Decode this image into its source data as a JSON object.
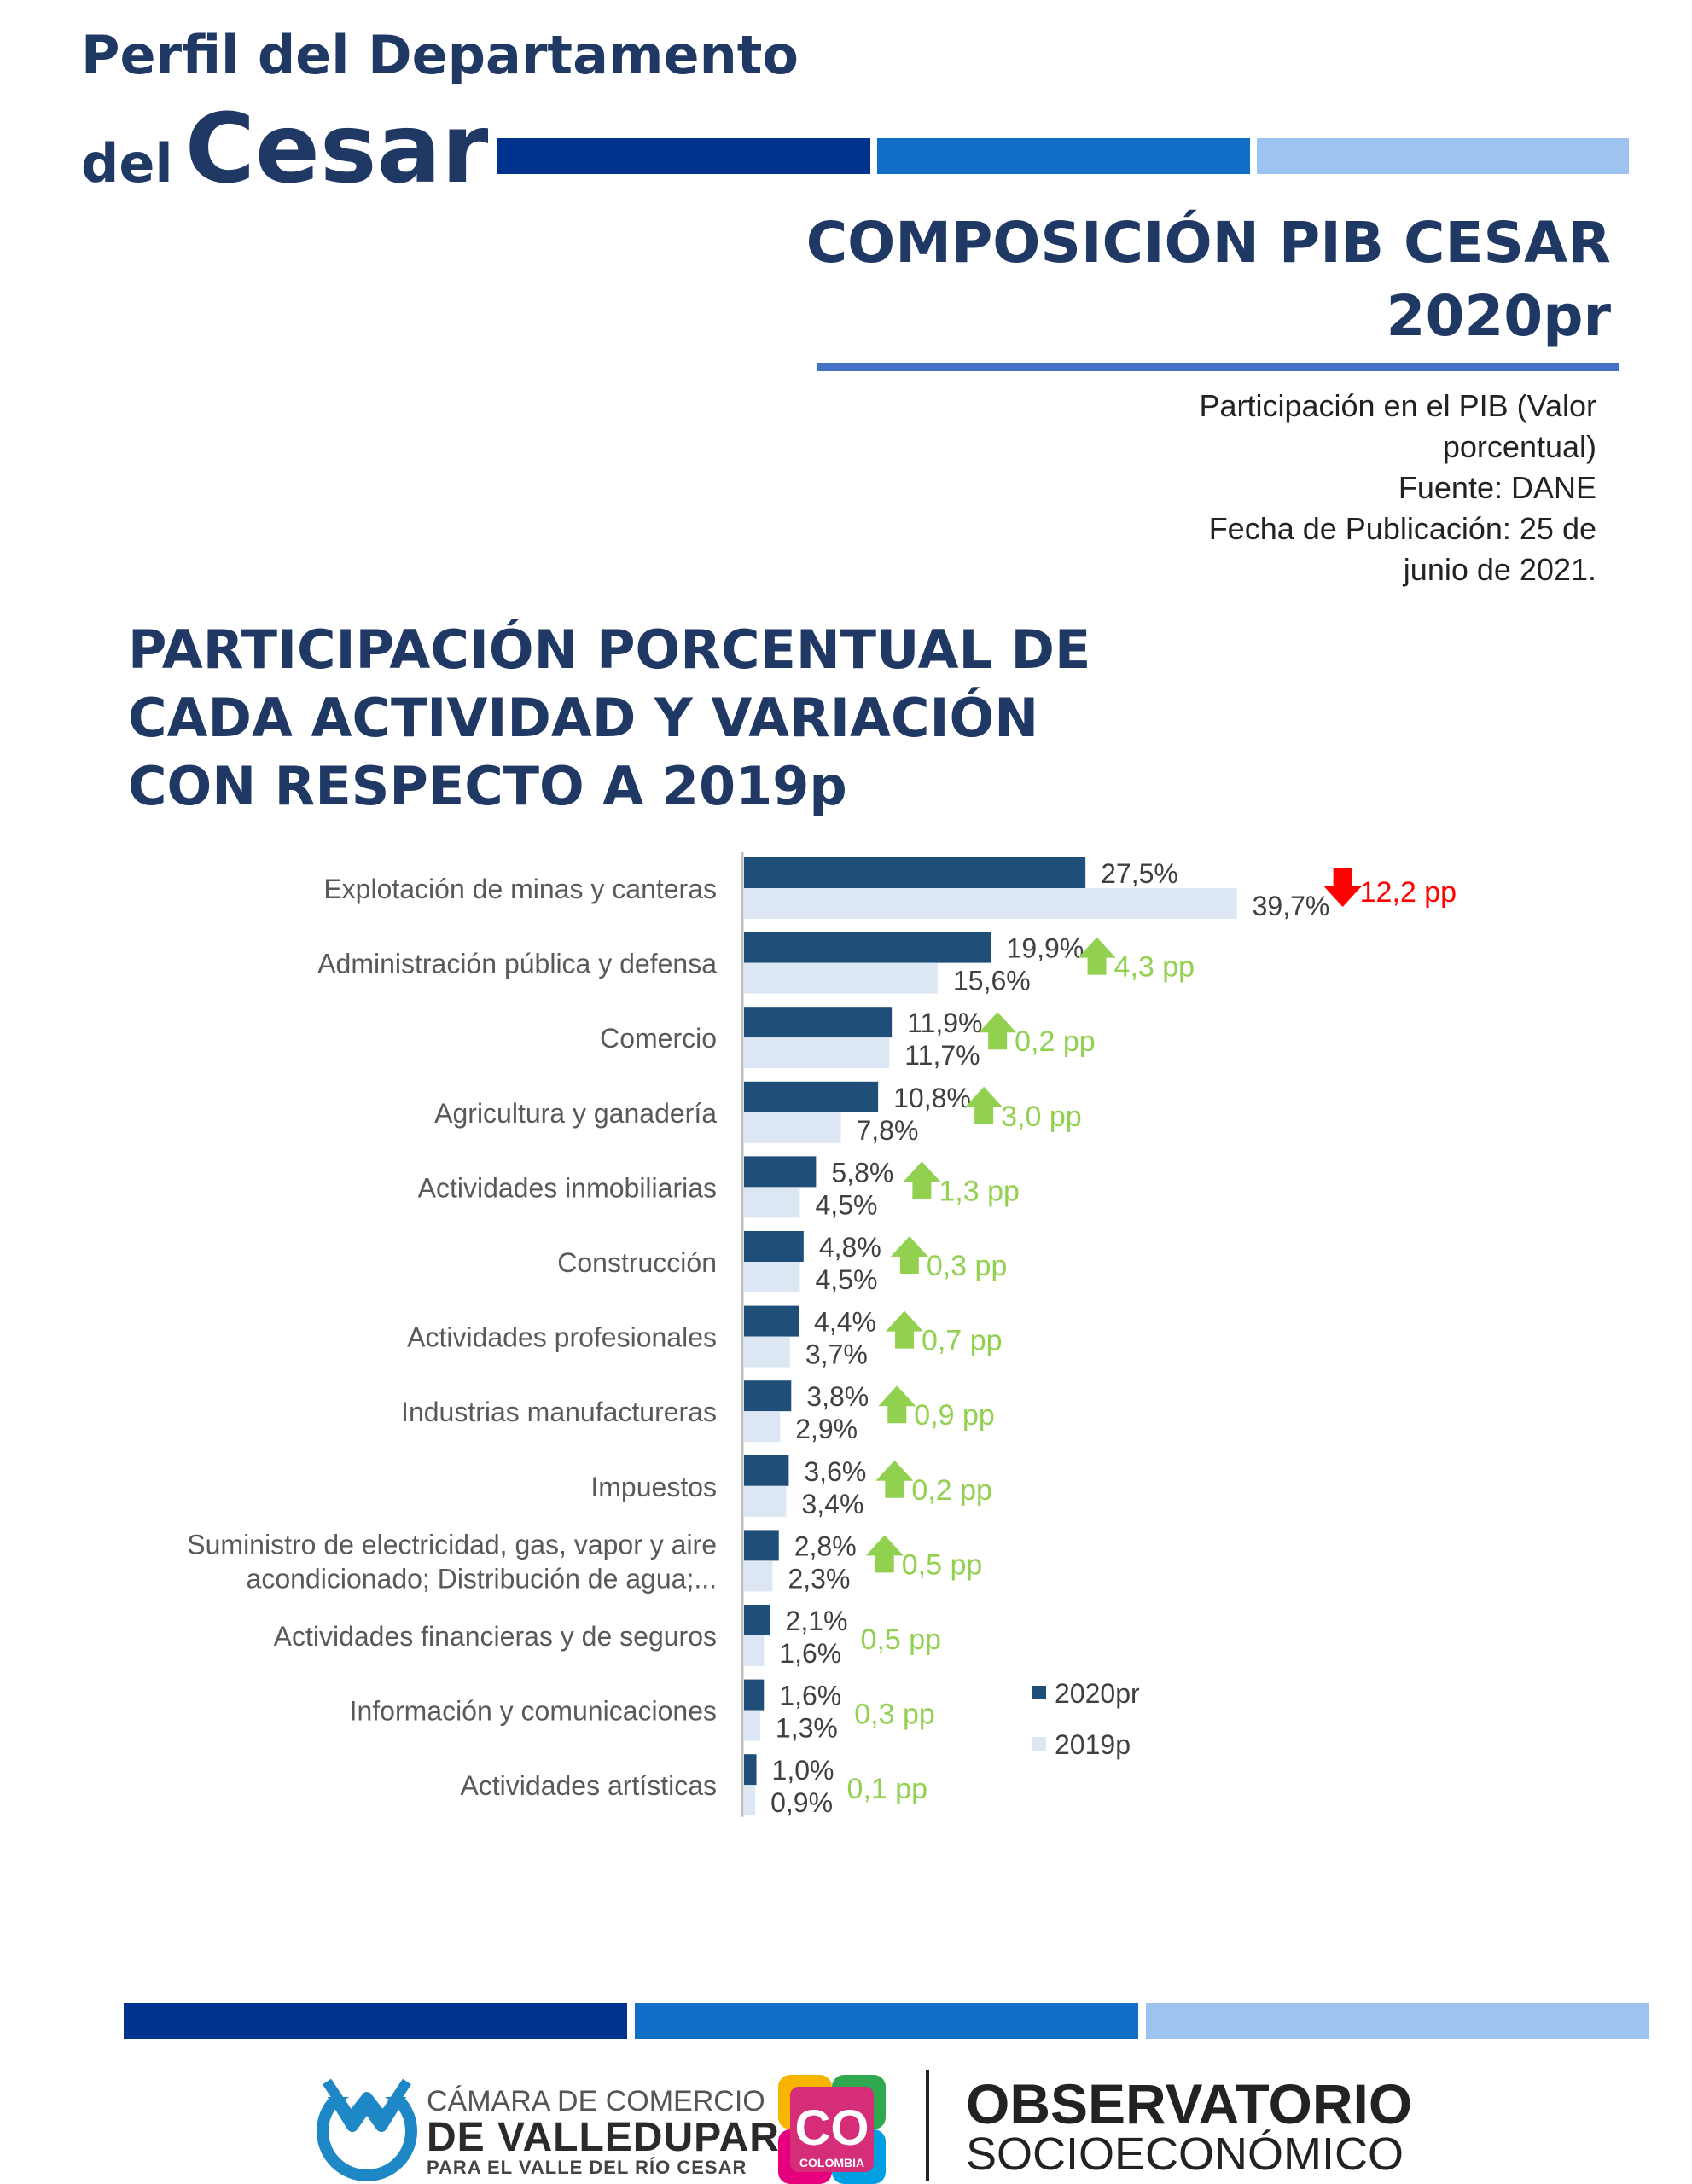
{
  "header": {
    "line1": "Perfil del Departamento",
    "line2_small": "del",
    "line2_big": "Cesar"
  },
  "main_title": {
    "line1": "COMPOSICIÓN PIB CESAR",
    "line2": "2020pr"
  },
  "meta": {
    "line1": "Participación en el PIB (Valor",
    "line2": "porcentual)",
    "line3": "Fuente:  DANE",
    "line4": "Fecha de Publicación: 25 de",
    "line5": "junio de  2021."
  },
  "chart_title": {
    "line1": "PARTICIPACIÓN PORCENTUAL DE",
    "line2": "CADA ACTIVIDAD Y VARIACIÓN",
    "line3": "CON RESPECTO A 2019p"
  },
  "colors": {
    "navy": "#1f3864",
    "bar_2020": "#1f4e79",
    "bar_2019": "#dde7f3",
    "up_green": "#92d050",
    "down_red": "#ff0000",
    "stripe_dark": "#00338d",
    "stripe_mid": "#0f6fc6",
    "stripe_light": "#9dc3f0"
  },
  "chart_data": {
    "type": "bar",
    "orientation": "horizontal",
    "title": "PARTICIPACIÓN PORCENTUAL DE CADA ACTIVIDAD Y VARIACIÓN CON RESPECTO A 2019p",
    "categories": [
      [
        "Explotación de minas y canteras"
      ],
      [
        "Administración pública y defensa"
      ],
      [
        "Comercio"
      ],
      [
        "Agricultura y ganadería"
      ],
      [
        "Actividades inmobiliarias"
      ],
      [
        "Construcción"
      ],
      [
        "Actividades profesionales"
      ],
      [
        "Industrias manufactureras"
      ],
      [
        "Impuestos"
      ],
      [
        "Suministro de electricidad, gas, vapor y aire",
        "acondicionado; Distribución de agua;..."
      ],
      [
        "Actividades financieras y de seguros"
      ],
      [
        "Información y comunicaciones"
      ],
      [
        "Actividades artísticas"
      ]
    ],
    "series": [
      {
        "name": "2020pr",
        "values": [
          27.5,
          19.9,
          11.9,
          10.8,
          5.8,
          4.8,
          4.4,
          3.8,
          3.6,
          2.8,
          2.1,
          1.6,
          1.0
        ],
        "labels": [
          "27,5%",
          "19,9%",
          "11,9%",
          "10,8%",
          "5,8%",
          "4,8%",
          "4,4%",
          "3,8%",
          "3,6%",
          "2,8%",
          "2,1%",
          "1,6%",
          "1,0%"
        ]
      },
      {
        "name": "2019p",
        "values": [
          39.7,
          15.6,
          11.7,
          7.8,
          4.5,
          4.5,
          3.7,
          2.9,
          3.4,
          2.3,
          1.6,
          1.3,
          0.9
        ],
        "labels": [
          "39,7%",
          "15,6%",
          "11,7%",
          "7,8%",
          "4,5%",
          "4,5%",
          "3,7%",
          "2,9%",
          "3,4%",
          "2,3%",
          "1,6%",
          "1,3%",
          "0,9%"
        ]
      }
    ],
    "variation": {
      "labels": [
        "12,2 pp",
        "4,3 pp",
        "0,2 pp",
        "3,0 pp",
        "1,3 pp",
        "0,3 pp",
        "0,7 pp",
        "0,9 pp",
        "0,2 pp",
        "0,5 pp",
        "0,5 pp",
        "0,3 pp",
        "0,1 pp"
      ],
      "direction": [
        "down",
        "up",
        "up",
        "up",
        "up",
        "up",
        "up",
        "up",
        "up",
        "up",
        "none",
        "none",
        "none"
      ]
    },
    "xlim": [
      0,
      40
    ],
    "grid": false,
    "legend_position": "bottom-right"
  },
  "footer": {
    "ccv_line1": "CÁMARA DE COMERCIO",
    "ccv_line2": "DE VALLEDUPAR",
    "ccv_line3": "PARA EL VALLE DEL RÍO CESAR",
    "co_logo_text": "CO",
    "co_logo_sub": "COLOMBIA",
    "obs_line1": "OBSERVATORIO",
    "obs_line2": "SOCIOECONÓMICO"
  }
}
